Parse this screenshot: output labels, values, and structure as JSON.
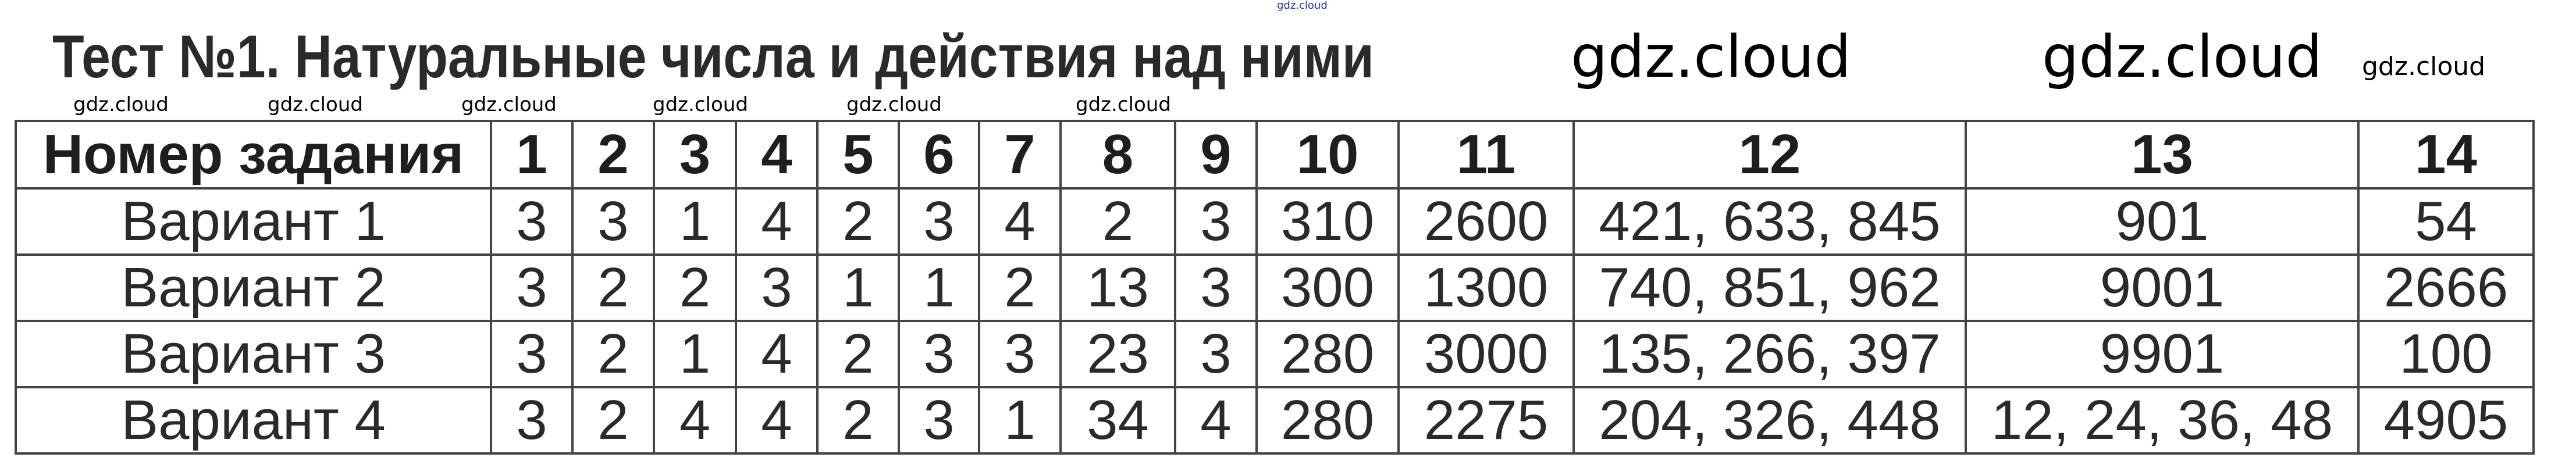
{
  "title": "Тест №1. Натуральные числа и действия над ними",
  "watermark": "gdz.cloud",
  "table": {
    "header": [
      "Номер задания",
      "1",
      "2",
      "3",
      "4",
      "5",
      "6",
      "7",
      "8",
      "9",
      "10",
      "11",
      "12",
      "13",
      "14"
    ],
    "rows": [
      [
        "Вариант 1",
        "3",
        "3",
        "1",
        "4",
        "2",
        "3",
        "4",
        "2",
        "3",
        "310",
        "2600",
        "421, 633, 845",
        "901",
        "54"
      ],
      [
        "Вариант 2",
        "3",
        "2",
        "2",
        "3",
        "1",
        "1",
        "2",
        "13",
        "3",
        "300",
        "1300",
        "740, 851, 962",
        "9001",
        "2666"
      ],
      [
        "Вариант 3",
        "3",
        "2",
        "1",
        "4",
        "2",
        "3",
        "3",
        "23",
        "3",
        "280",
        "3000",
        "135, 266, 397",
        "9901",
        "100"
      ],
      [
        "Вариант 4",
        "3",
        "2",
        "4",
        "4",
        "2",
        "3",
        "1",
        "34",
        "4",
        "280",
        "2275",
        "204, 326, 448",
        "12, 24, 36, 48",
        "4905"
      ]
    ]
  }
}
